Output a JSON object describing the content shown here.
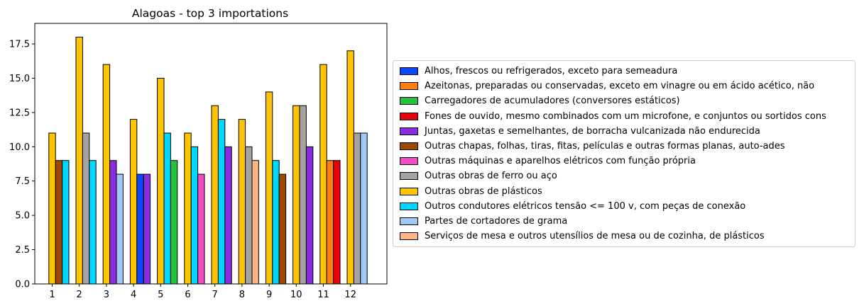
{
  "chart_data": {
    "type": "bar",
    "title": "Alagoas - top 3 importations",
    "xlabel": "",
    "ylabel": "",
    "categories": [
      "1",
      "2",
      "3",
      "4",
      "5",
      "6",
      "7",
      "8",
      "9",
      "10",
      "11",
      "12"
    ],
    "ylim": [
      0,
      19
    ],
    "yticks": [
      "0.0",
      "2.5",
      "5.0",
      "7.5",
      "10.0",
      "12.5",
      "15.0",
      "17.5"
    ],
    "ytick_values": [
      0,
      2.5,
      5,
      7.5,
      10,
      12.5,
      15,
      17.5
    ],
    "grid": false,
    "legend_position": "right",
    "series": [
      {
        "name": "Alhos, frescos ou refrigerados, exceto para semeadura",
        "color": "#0a47ff"
      },
      {
        "name": "Azeitonas, preparadas ou conservadas, exceto em vinagre ou em ácido acético, não",
        "color": "#ff7f0e"
      },
      {
        "name": "Carregadores de acumuladores (conversores estáticos)",
        "color": "#22c43f"
      },
      {
        "name": "Fones de ouvido, mesmo combinados com um microfone, e conjuntos ou sortidos cons",
        "color": "#e8000b"
      },
      {
        "name": "Juntas, gaxetas e semelhantes, de borracha vulcanizada não endurecida",
        "color": "#8b2be2"
      },
      {
        "name": "Outras chapas, folhas, tiras, fitas, películas e outras formas planas, auto-ades",
        "color": "#9f4800"
      },
      {
        "name": "Outras máquinas e aparelhos elétricos com função própria",
        "color": "#f14cc1"
      },
      {
        "name": "Outras obras de ferro ou aço",
        "color": "#a3a3a3"
      },
      {
        "name": "Outras obras de plásticos",
        "color": "#ffc400"
      },
      {
        "name": "Outros condutores elétricos tensão <= 100 v, com peças de conexão",
        "color": "#00d7ff"
      },
      {
        "name": "Partes de cortadores de grama",
        "color": "#a1c9f4"
      },
      {
        "name": "Serviços de mesa e outros utensílios de mesa ou de cozinha, de plásticos",
        "color": "#ffb482"
      }
    ],
    "groups": [
      {
        "category": "1",
        "bars": [
          {
            "series": 8,
            "value": 11
          },
          {
            "series": 5,
            "value": 9
          },
          {
            "series": 9,
            "value": 9
          }
        ]
      },
      {
        "category": "2",
        "bars": [
          {
            "series": 8,
            "value": 18
          },
          {
            "series": 7,
            "value": 11
          },
          {
            "series": 9,
            "value": 9
          }
        ]
      },
      {
        "category": "3",
        "bars": [
          {
            "series": 8,
            "value": 16
          },
          {
            "series": 4,
            "value": 9
          },
          {
            "series": 10,
            "value": 8
          }
        ]
      },
      {
        "category": "4",
        "bars": [
          {
            "series": 8,
            "value": 12
          },
          {
            "series": 0,
            "value": 8
          },
          {
            "series": 4,
            "value": 8
          }
        ]
      },
      {
        "category": "5",
        "bars": [
          {
            "series": 8,
            "value": 15
          },
          {
            "series": 9,
            "value": 11
          },
          {
            "series": 2,
            "value": 9
          }
        ]
      },
      {
        "category": "6",
        "bars": [
          {
            "series": 8,
            "value": 11
          },
          {
            "series": 9,
            "value": 10
          },
          {
            "series": 6,
            "value": 8
          }
        ]
      },
      {
        "category": "7",
        "bars": [
          {
            "series": 8,
            "value": 13
          },
          {
            "series": 9,
            "value": 12
          },
          {
            "series": 4,
            "value": 10
          }
        ]
      },
      {
        "category": "8",
        "bars": [
          {
            "series": 8,
            "value": 12
          },
          {
            "series": 7,
            "value": 10
          },
          {
            "series": 11,
            "value": 9
          }
        ]
      },
      {
        "category": "9",
        "bars": [
          {
            "series": 8,
            "value": 14
          },
          {
            "series": 9,
            "value": 9
          },
          {
            "series": 5,
            "value": 8
          }
        ]
      },
      {
        "category": "10",
        "bars": [
          {
            "series": 8,
            "value": 13
          },
          {
            "series": 7,
            "value": 13
          },
          {
            "series": 4,
            "value": 10
          }
        ]
      },
      {
        "category": "11",
        "bars": [
          {
            "series": 8,
            "value": 16
          },
          {
            "series": 1,
            "value": 9
          },
          {
            "series": 3,
            "value": 9
          }
        ]
      },
      {
        "category": "12",
        "bars": [
          {
            "series": 8,
            "value": 17
          },
          {
            "series": 7,
            "value": 11
          },
          {
            "series": 10,
            "value": 11
          }
        ]
      }
    ]
  }
}
